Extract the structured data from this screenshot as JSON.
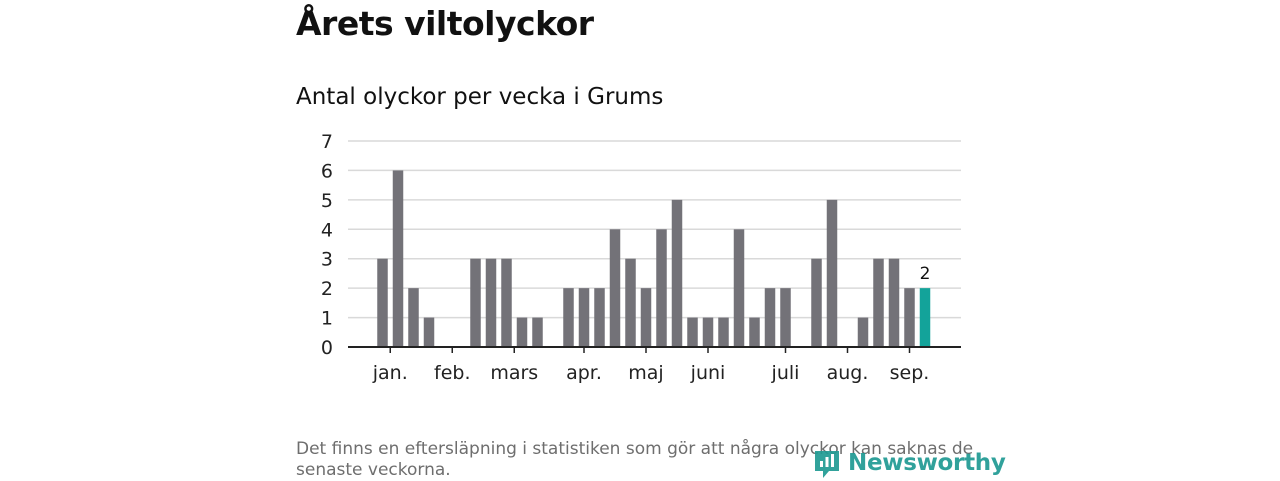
{
  "title": "Årets viltolyckor",
  "subtitle": "Antal olyckor per vecka i Grums",
  "footnote": "Det finns en eftersläpning i statistiken som gör att några olyckor kan saknas de senaste veckorna.",
  "brand": {
    "name": "Newsworthy",
    "icon": "newsworthy-logo-icon",
    "color": "#1f9a93"
  },
  "chart_data": {
    "type": "bar",
    "title": "Antal olyckor per vecka i Grums",
    "xlabel": "",
    "ylabel": "",
    "ylim": [
      0,
      7
    ],
    "yticks": [
      "0",
      "1",
      "2",
      "3",
      "4",
      "5",
      "6",
      "7"
    ],
    "grid": true,
    "x_axis": "week",
    "months": [
      {
        "label": "jan.",
        "week": 1.5
      },
      {
        "label": "feb.",
        "week": 5.5
      },
      {
        "label": "mars",
        "week": 9.5
      },
      {
        "label": "apr.",
        "week": 14
      },
      {
        "label": "maj",
        "week": 18
      },
      {
        "label": "juni",
        "week": 22
      },
      {
        "label": "juli",
        "week": 27
      },
      {
        "label": "aug.",
        "week": 31
      },
      {
        "label": "sep.",
        "week": 35
      }
    ],
    "weeks": [
      1,
      2,
      3,
      4,
      5,
      6,
      7,
      8,
      9,
      10,
      11,
      12,
      13,
      14,
      15,
      16,
      17,
      18,
      19,
      20,
      21,
      22,
      23,
      24,
      25,
      26,
      27,
      28,
      29,
      30,
      31,
      32,
      33,
      34,
      35,
      36
    ],
    "values": [
      3,
      6,
      2,
      1,
      0,
      0,
      3,
      3,
      3,
      1,
      1,
      0,
      2,
      2,
      2,
      4,
      3,
      2,
      4,
      5,
      1,
      1,
      1,
      4,
      1,
      2,
      2,
      0,
      3,
      5,
      0,
      1,
      3,
      3,
      2,
      2
    ],
    "bar_color": "#737278",
    "highlight_color": "#13a39a",
    "highlight_label": "2"
  }
}
